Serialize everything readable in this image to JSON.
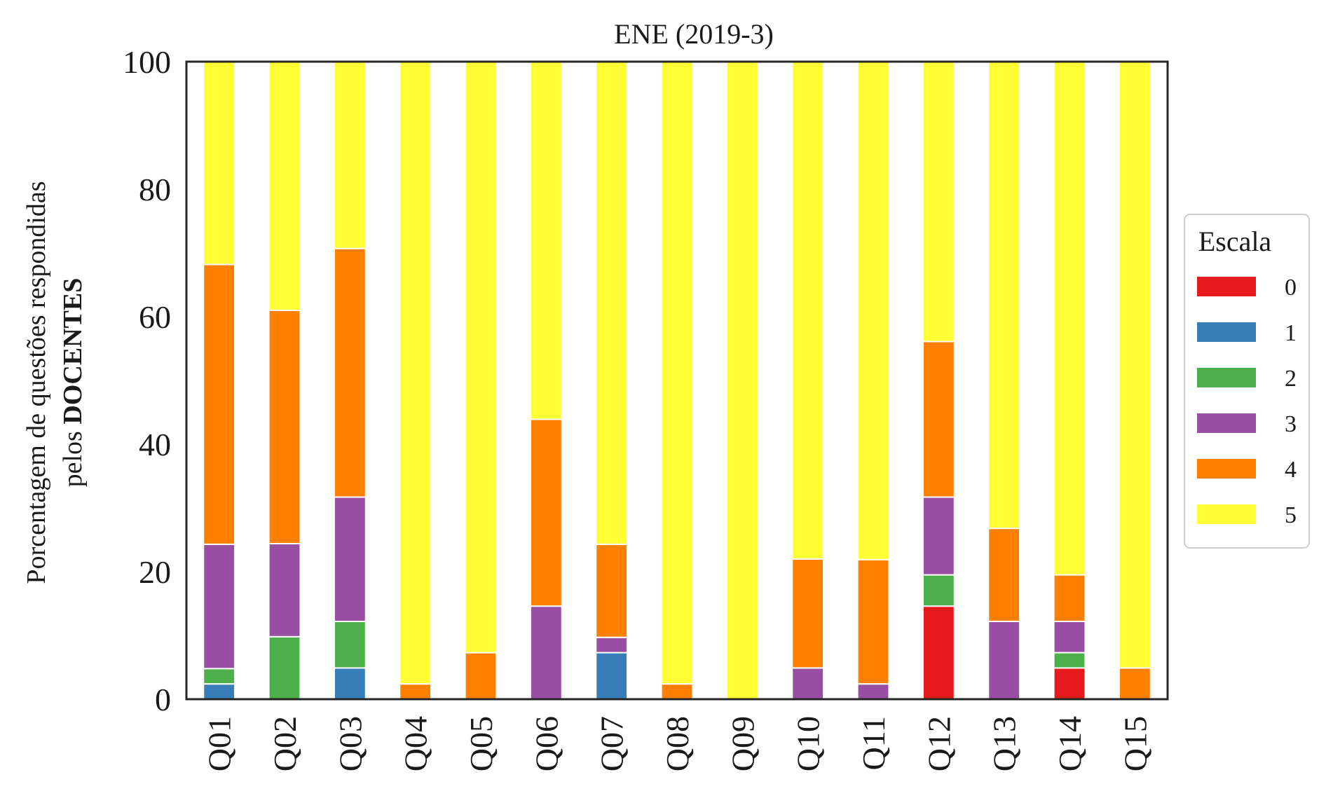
{
  "chart_data": {
    "type": "bar",
    "stacked": true,
    "title": "ENE (2019-3)",
    "ylabel_line1": "Porcentagem de questões respondidas",
    "ylabel_line2_prefix": "pelos ",
    "ylabel_line2_bold": "DOCENTES",
    "xlabel": "",
    "ylim": [
      0,
      100
    ],
    "yticks": [
      "0",
      "20",
      "40",
      "60",
      "80",
      "100"
    ],
    "categories": [
      "Q01",
      "Q02",
      "Q03",
      "Q04",
      "Q05",
      "Q06",
      "Q07",
      "Q08",
      "Q09",
      "Q10",
      "Q11",
      "Q12",
      "Q13",
      "Q14",
      "Q15"
    ],
    "legend": {
      "title": "Escala",
      "placement": "right"
    },
    "series": [
      {
        "name": "0",
        "color": "#e41a1c",
        "values": [
          0,
          0,
          0,
          0,
          0,
          0,
          0,
          0,
          0,
          0,
          0,
          14.6,
          0,
          4.9,
          0
        ]
      },
      {
        "name": "1",
        "color": "#377eb8",
        "values": [
          2.4,
          0,
          4.9,
          0,
          0,
          0,
          7.3,
          0,
          0,
          0,
          0,
          0,
          0,
          0,
          0
        ]
      },
      {
        "name": "2",
        "color": "#4daf4a",
        "values": [
          2.4,
          9.8,
          7.3,
          0,
          0,
          0,
          0,
          0,
          0,
          0,
          0,
          4.9,
          0,
          2.4,
          0
        ]
      },
      {
        "name": "3",
        "color": "#984ea3",
        "values": [
          19.5,
          14.6,
          19.5,
          0,
          0,
          14.6,
          2.4,
          0,
          0,
          4.9,
          2.4,
          12.2,
          12.2,
          4.9,
          0
        ]
      },
      {
        "name": "4",
        "color": "#ff7f00",
        "values": [
          43.9,
          36.6,
          39.0,
          2.4,
          7.3,
          29.3,
          14.6,
          2.4,
          0,
          17.1,
          19.5,
          24.4,
          14.6,
          7.3,
          4.9
        ]
      },
      {
        "name": "5",
        "color": "#ffff33",
        "values": [
          31.8,
          39.0,
          29.3,
          97.6,
          92.7,
          56.1,
          75.7,
          97.6,
          100,
          78.0,
          78.1,
          43.9,
          73.2,
          80.5,
          95.1
        ]
      }
    ]
  }
}
